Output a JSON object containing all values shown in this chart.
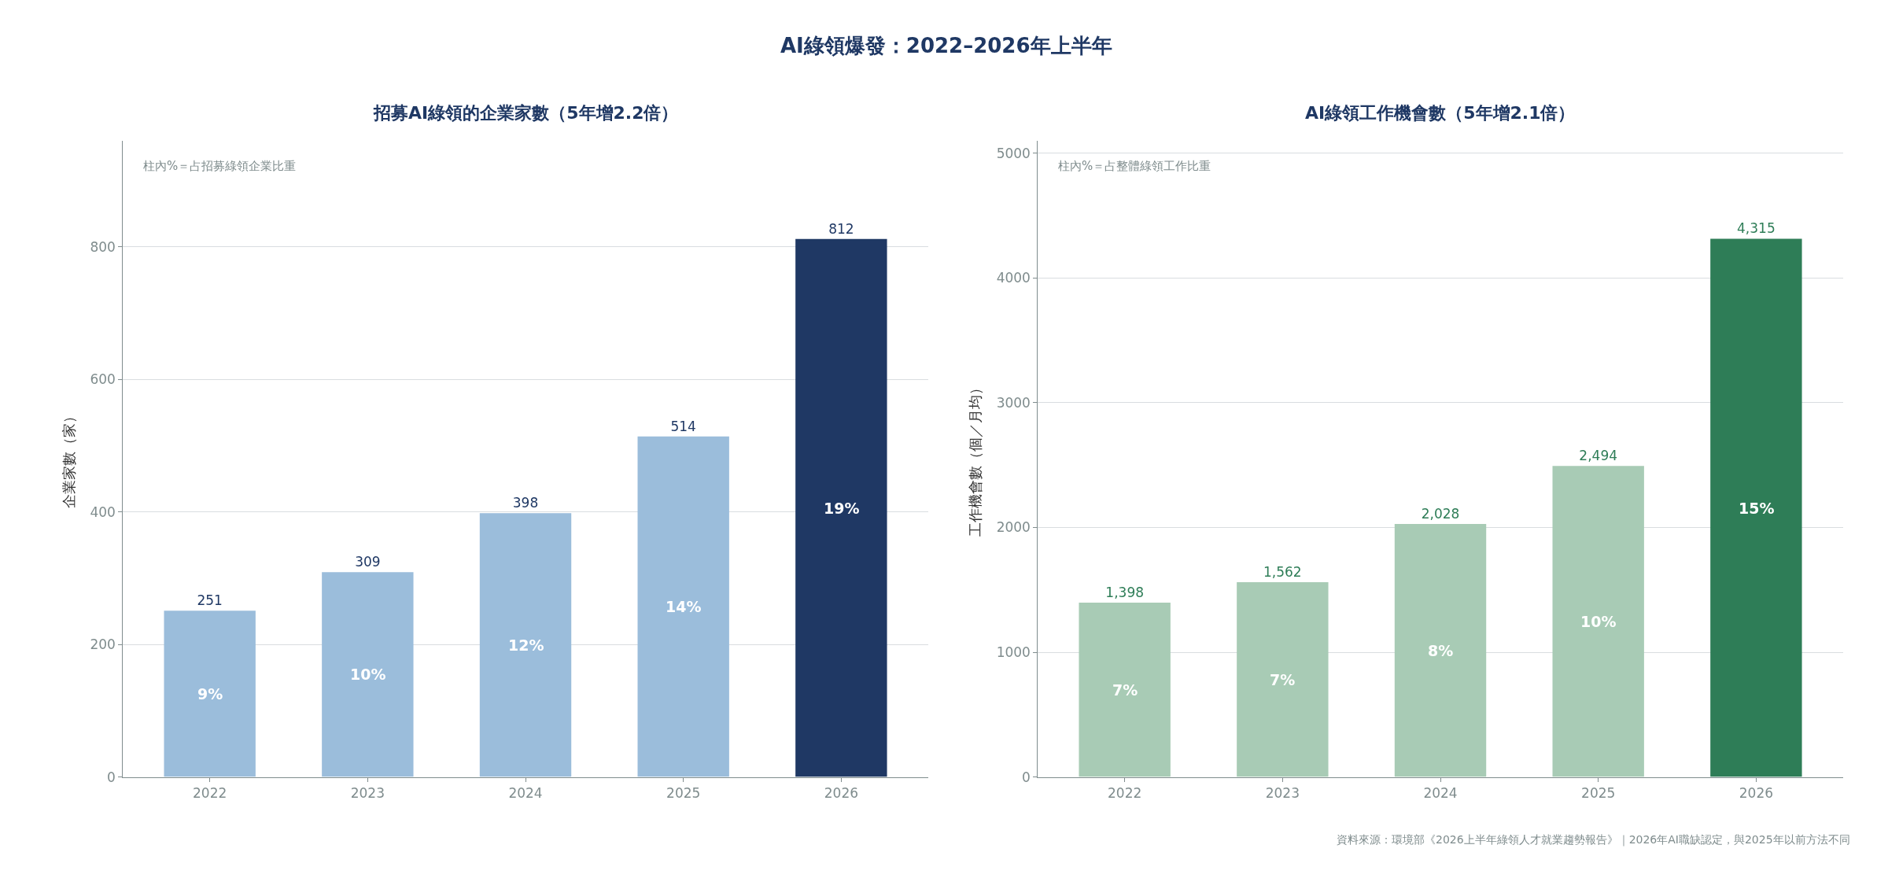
{
  "chart_data": [
    {
      "type": "bar",
      "title": "招募AI綠領的企業家數（5年增2.2倍）",
      "ylabel": "企業家數（家）",
      "categories": [
        "2022",
        "2023",
        "2024",
        "2025",
        "2026"
      ],
      "values": [
        251,
        309,
        398,
        514,
        812
      ],
      "colors": [
        "#9bbddb",
        "#9bbddb",
        "#9bbddb",
        "#9bbddb",
        "#1f3864"
      ],
      "data_labels": true,
      "ylim": [
        0,
        960
      ],
      "yticks": [
        0,
        200,
        400,
        600,
        800
      ],
      "grid": "y",
      "legend": false,
      "annotations": [
        "AI綠領爆發：2022–2026年上半年",
        "柱內%＝占招募綠領企業比重",
        "9%",
        "10%",
        "12%",
        "14%",
        "19%"
      ]
    },
    {
      "type": "bar",
      "title": "AI綠領工作機會數（5年增2.1倍）",
      "ylabel": "工作機會數（個／月均）",
      "categories": [
        "2022",
        "2023",
        "2024",
        "2025",
        "2026"
      ],
      "values": [
        1398,
        1562,
        2028,
        2494,
        4315
      ],
      "colors": [
        "#a8cbb5",
        "#a8cbb5",
        "#a8cbb5",
        "#a8cbb5",
        "#2e7d57"
      ],
      "value_labels": [
        "1,398",
        "1,562",
        "2,028",
        "2,494",
        "4,315"
      ],
      "ylim": [
        0,
        5100
      ],
      "yticks": [
        0,
        1000,
        2000,
        3000,
        4000,
        5000
      ],
      "grid": "y",
      "legend": false,
      "annotations": [
        "柱內%＝占整體綠領工作比重",
        "資料來源：環境部《2026上半年綠領人才就業趨勢報告》｜2026年AI職缺認定，與2025年以前方法不同",
        "7%",
        "7%",
        "8%",
        "10%",
        "15%"
      ]
    }
  ]
}
